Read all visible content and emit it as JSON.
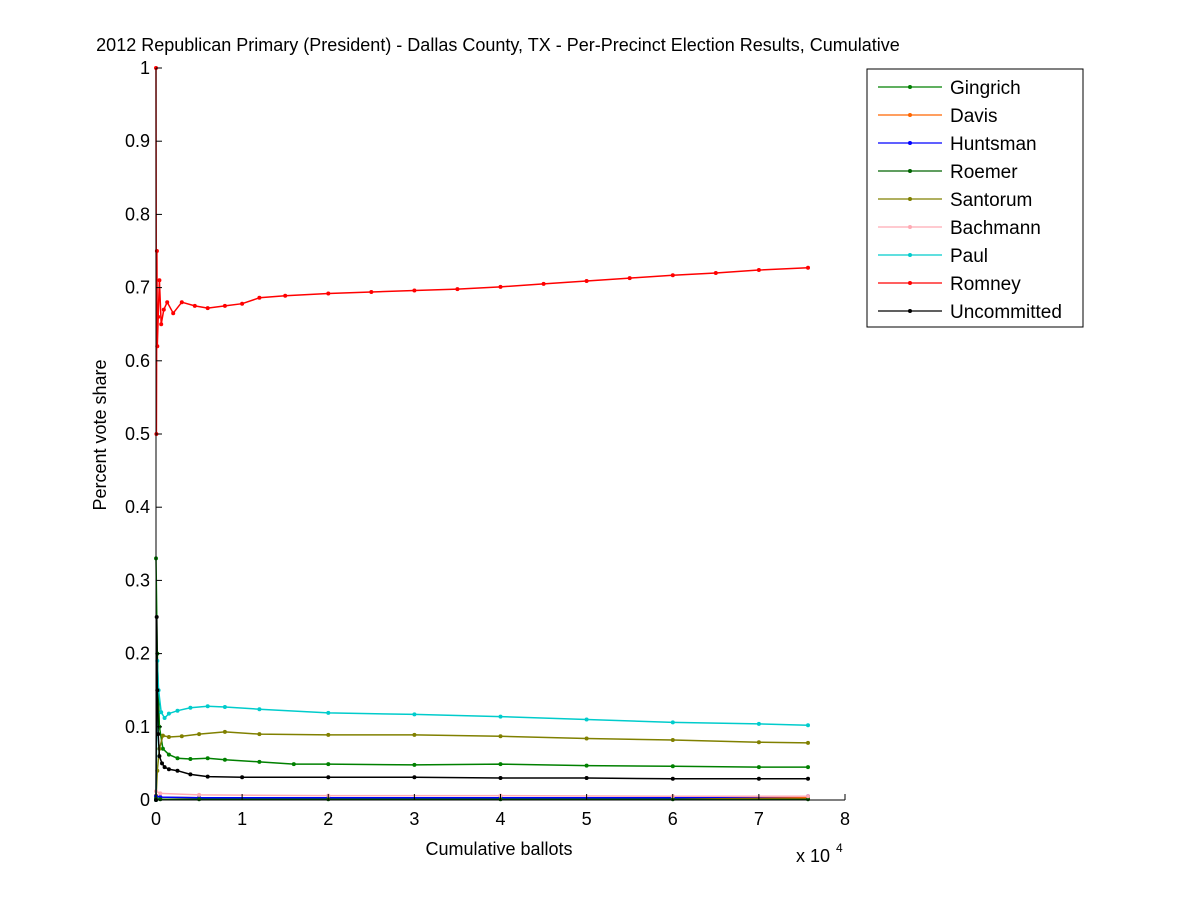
{
  "chart_data": {
    "type": "line",
    "title": "2012 Republican Primary (President) - Dallas County, TX - Per-Precinct Election Results, Cumulative",
    "xlabel": "Cumulative ballots",
    "ylabel": "Percent vote share",
    "x_multiplier_label": "x 10",
    "x_multiplier_exponent": "4",
    "xlim": [
      0,
      80000
    ],
    "ylim": [
      0,
      1
    ],
    "x_ticks": [
      0,
      10000,
      20000,
      30000,
      40000,
      50000,
      60000,
      70000,
      80000
    ],
    "x_tick_labels": [
      "0",
      "1",
      "2",
      "3",
      "4",
      "5",
      "6",
      "7",
      "8"
    ],
    "y_ticks": [
      0,
      0.1,
      0.2,
      0.3,
      0.4,
      0.5,
      0.6,
      0.7,
      0.8,
      0.9,
      1
    ],
    "y_tick_labels": [
      "0",
      "0.1",
      "0.2",
      "0.3",
      "0.4",
      "0.5",
      "0.6",
      "0.7",
      "0.8",
      "0.9",
      "1"
    ],
    "grid": false,
    "legend_position": "top-right",
    "series": [
      {
        "name": "Gingrich",
        "color": "#008000",
        "x": [
          0,
          150,
          400,
          800,
          1500,
          2500,
          4000,
          6000,
          8000,
          12000,
          16000,
          20000,
          30000,
          40000,
          50000,
          60000,
          70000,
          75700
        ],
        "y": [
          0.33,
          0.2,
          0.1,
          0.07,
          0.062,
          0.057,
          0.056,
          0.057,
          0.055,
          0.052,
          0.049,
          0.049,
          0.048,
          0.049,
          0.047,
          0.046,
          0.045,
          0.045
        ]
      },
      {
        "name": "Davis",
        "color": "#ff6600",
        "x": [
          0,
          500,
          5000,
          20000,
          40000,
          60000,
          75700
        ],
        "y": [
          0.006,
          0.004,
          0.003,
          0.003,
          0.003,
          0.003,
          0.003
        ]
      },
      {
        "name": "Huntsman",
        "color": "#0000ff",
        "x": [
          0,
          500,
          5000,
          20000,
          40000,
          60000,
          75700
        ],
        "y": [
          0.005,
          0.004,
          0.003,
          0.003,
          0.003,
          0.003,
          0.005
        ]
      },
      {
        "name": "Roemer",
        "color": "#006400",
        "x": [
          0,
          500,
          5000,
          20000,
          40000,
          60000,
          75700
        ],
        "y": [
          0.002,
          0.001,
          0.001,
          0.001,
          0.001,
          0.001,
          0.001
        ]
      },
      {
        "name": "Santorum",
        "color": "#808000",
        "x": [
          0,
          150,
          400,
          800,
          1500,
          3000,
          5000,
          8000,
          12000,
          20000,
          30000,
          40000,
          50000,
          60000,
          70000,
          75700
        ],
        "y": [
          0.0,
          0.04,
          0.07,
          0.088,
          0.086,
          0.087,
          0.09,
          0.093,
          0.09,
          0.089,
          0.089,
          0.087,
          0.084,
          0.082,
          0.079,
          0.078
        ]
      },
      {
        "name": "Bachmann",
        "color": "#ffaab4",
        "x": [
          0,
          500,
          5000,
          20000,
          40000,
          60000,
          75700
        ],
        "y": [
          0.012,
          0.009,
          0.007,
          0.006,
          0.006,
          0.005,
          0.005
        ]
      },
      {
        "name": "Paul",
        "color": "#00cccc",
        "x": [
          0,
          150,
          300,
          600,
          1000,
          1500,
          2500,
          4000,
          6000,
          8000,
          12000,
          20000,
          30000,
          40000,
          50000,
          60000,
          70000,
          75700
        ],
        "y": [
          0.0,
          0.19,
          0.15,
          0.12,
          0.112,
          0.118,
          0.122,
          0.126,
          0.128,
          0.127,
          0.124,
          0.119,
          0.117,
          0.114,
          0.11,
          0.106,
          0.104,
          0.102
        ]
      },
      {
        "name": "Romney",
        "color": "#ff0000",
        "x": [
          0,
          50,
          100,
          150,
          250,
          400,
          600,
          900,
          1300,
          2000,
          3000,
          4500,
          6000,
          8000,
          10000,
          12000,
          15000,
          20000,
          25000,
          30000,
          35000,
          40000,
          45000,
          50000,
          55000,
          60000,
          65000,
          70000,
          75700
        ],
        "y": [
          1.0,
          0.5,
          0.75,
          0.62,
          0.66,
          0.71,
          0.65,
          0.67,
          0.68,
          0.665,
          0.68,
          0.675,
          0.672,
          0.675,
          0.678,
          0.686,
          0.689,
          0.692,
          0.694,
          0.696,
          0.698,
          0.701,
          0.705,
          0.709,
          0.713,
          0.717,
          0.72,
          0.724,
          0.727
        ]
      },
      {
        "name": "Uncommitted",
        "color": "#000000",
        "x": [
          0,
          80,
          150,
          250,
          400,
          700,
          1000,
          1500,
          2500,
          4000,
          6000,
          10000,
          20000,
          30000,
          40000,
          50000,
          60000,
          70000,
          75700
        ],
        "y": [
          0.0,
          0.25,
          0.15,
          0.09,
          0.06,
          0.05,
          0.045,
          0.042,
          0.04,
          0.035,
          0.032,
          0.031,
          0.031,
          0.031,
          0.03,
          0.03,
          0.029,
          0.029,
          0.029
        ]
      }
    ]
  }
}
